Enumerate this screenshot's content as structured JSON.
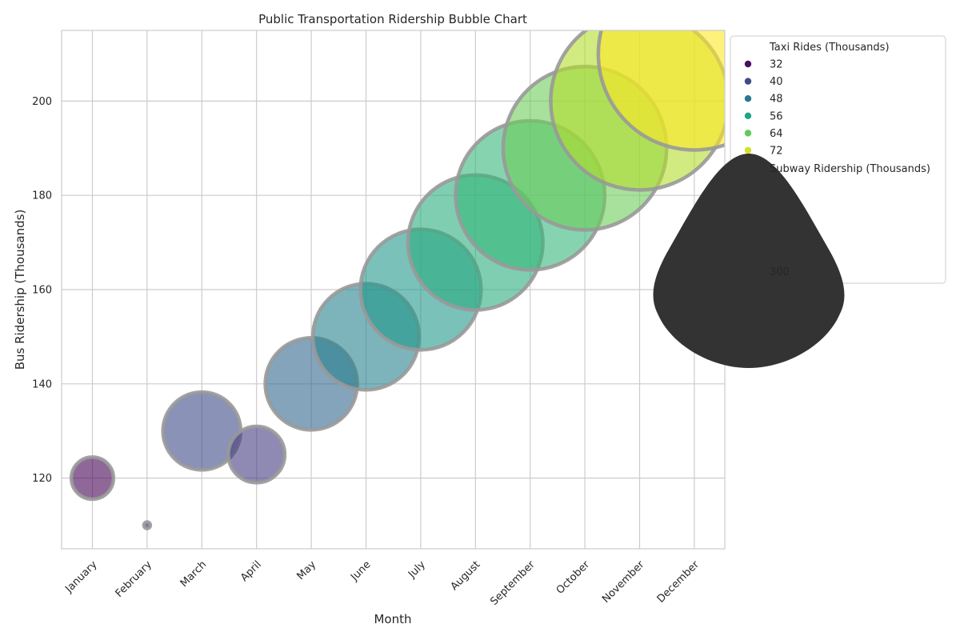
{
  "chart_data": {
    "type": "scatter",
    "title": "Public Transportation Ridership Bubble Chart",
    "xlabel": "Month",
    "ylabel": "Bus Ridership (Thousands)",
    "categories": [
      "January",
      "February",
      "March",
      "April",
      "May",
      "June",
      "July",
      "August",
      "September",
      "October",
      "November",
      "December"
    ],
    "ylim": [
      105,
      215
    ],
    "yticks": [
      120,
      140,
      160,
      180,
      200
    ],
    "grid": true,
    "series": [
      {
        "y": [
          120,
          110,
          130,
          125,
          140,
          150,
          160,
          170,
          180,
          190,
          200,
          210
        ],
        "size": [
          200,
          150,
          250,
          220,
          270,
          290,
          310,
          330,
          350,
          370,
          390,
          410
        ],
        "color_value": [
          30,
          33,
          40,
          38,
          45,
          50,
          54,
          58,
          60,
          65,
          70,
          75
        ]
      }
    ],
    "legend": {
      "placement": "outside-right",
      "hue_title": "Taxi Rides (Thousands)",
      "hue_entries": [
        "32",
        "40",
        "48",
        "56",
        "64",
        "72"
      ],
      "size_title": "Subway Ridership (Thousands)",
      "size_entries": [
        "300"
      ]
    },
    "colors": {
      "colormap": "viridis",
      "bubble_edge": "#999999",
      "grid": "#cccccc",
      "legend_size_marker": "#333333"
    }
  }
}
